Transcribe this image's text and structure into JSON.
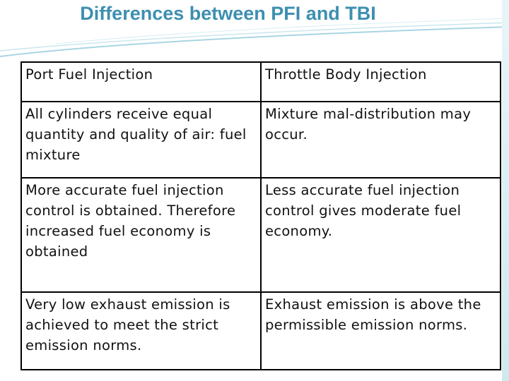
{
  "header": {
    "title": "Differences between PFI and TBI"
  },
  "table": {
    "rows": [
      [
        "Port Fuel Injection",
        "Throttle Body Injection"
      ],
      [
        "All cylinders receive equal quantity and quality of air: fuel mixture",
        "Mixture mal-distribution may occur."
      ],
      [
        "More accurate fuel injection control is obtained. Therefore increased fuel economy is obtained",
        "Less accurate fuel injection control gives moderate fuel economy."
      ],
      [
        "Very low exhaust emission is achieved to meet the strict emission norms.",
        "Exhaust emission is above the permissible emission norms."
      ]
    ]
  }
}
